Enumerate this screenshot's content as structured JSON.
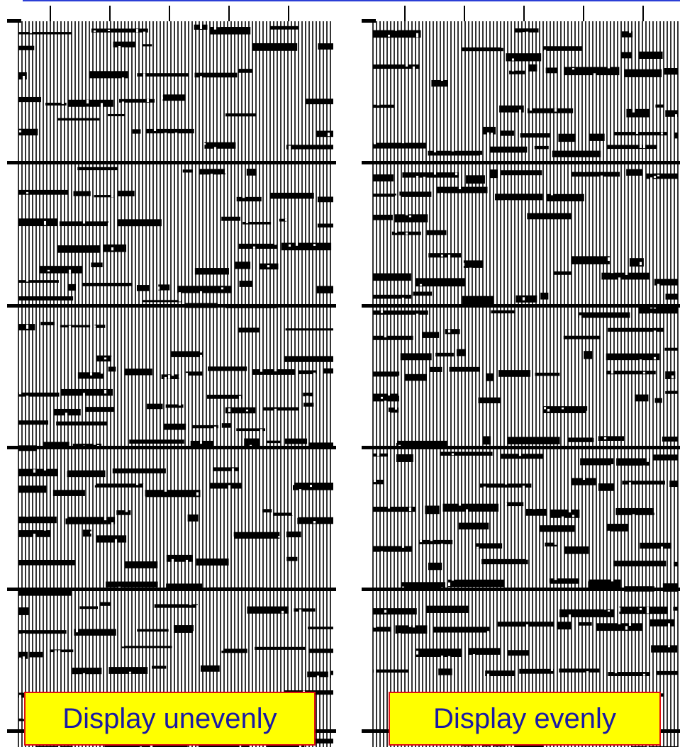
{
  "panels": [
    {
      "caption": "Display unevenly"
    },
    {
      "caption": "Display evenly"
    }
  ],
  "colors": {
    "trace": "#000000",
    "background": "#ffffff",
    "caption_fill": "#ffff00",
    "caption_border": "#e01010",
    "caption_text": "#1a1aa6",
    "top_rule": "#2b3fd6"
  }
}
